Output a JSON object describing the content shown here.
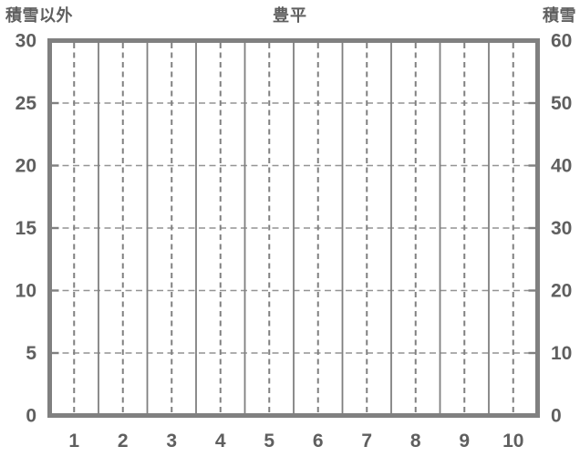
{
  "chart_data": {
    "type": "line",
    "title": "豊平",
    "subtitle": "",
    "left_axis": {
      "label": "積雪以外",
      "min": 0,
      "max": 30,
      "step": 5,
      "ticks": [
        "0",
        "5",
        "10",
        "15",
        "20",
        "25",
        "30"
      ]
    },
    "right_axis": {
      "label": "積雪",
      "min": 0,
      "max": 60,
      "step": 10,
      "ticks": [
        "0",
        "10",
        "20",
        "30",
        "40",
        "50",
        "60"
      ]
    },
    "x_axis": {
      "label": "",
      "ticks": [
        "1",
        "2",
        "3",
        "4",
        "5",
        "6",
        "7",
        "8",
        "9",
        "10"
      ]
    },
    "series": [],
    "legend": "none",
    "grid": {
      "horizontal": "dashed",
      "vertical_category_centers": "dashed",
      "vertical_category_boundaries": "solid"
    },
    "colors": {
      "frame": "#808080",
      "grid_solid": "#7f7f7f",
      "grid_dashed": "#949494",
      "tick_text": "#5f5f5f",
      "background": "#ffffff"
    }
  }
}
